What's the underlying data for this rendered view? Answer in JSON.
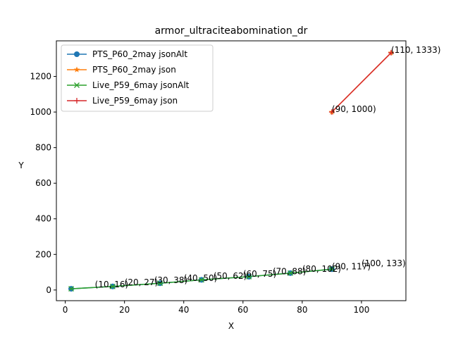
{
  "chart_data": {
    "type": "line",
    "title": "armor_ultraciteabomination_dr",
    "xlabel": "X",
    "ylabel": "Y",
    "xlim": [
      -3,
      115
    ],
    "ylim": [
      -60,
      1400
    ],
    "xticks": [
      0,
      20,
      40,
      60,
      80,
      100
    ],
    "yticks": [
      0,
      200,
      400,
      600,
      800,
      1000,
      1200
    ],
    "legend_position": "upper-left",
    "grid": false,
    "series": [
      {
        "name": "PTS_P60_2may jsonAlt",
        "color": "#1f77b4",
        "marker": "circle",
        "points": [
          [
            2,
            7
          ],
          [
            16,
            20
          ],
          [
            32,
            38
          ],
          [
            46,
            57
          ],
          [
            62,
            75
          ],
          [
            76,
            95
          ],
          [
            90,
            117
          ]
        ]
      },
      {
        "name": "PTS_P60_2may json",
        "color": "#ff7f0e",
        "marker": "star",
        "points": [
          [
            90,
            1000
          ],
          [
            110,
            1333
          ]
        ]
      },
      {
        "name": "Live_P59_6may jsonAlt",
        "color": "#2ca02c",
        "marker": "x",
        "points": [
          [
            2,
            7
          ],
          [
            16,
            20
          ],
          [
            32,
            38
          ],
          [
            46,
            57
          ],
          [
            62,
            75
          ],
          [
            76,
            95
          ],
          [
            90,
            117
          ]
        ]
      },
      {
        "name": "Live_P59_6may json",
        "color": "#d62728",
        "marker": "plus",
        "points": [
          [
            90,
            1000
          ],
          [
            110,
            1333
          ]
        ]
      }
    ],
    "annotations": [
      {
        "text": "(10, 16)",
        "x": 10,
        "y": 16
      },
      {
        "text": "(20, 27)",
        "x": 20,
        "y": 27
      },
      {
        "text": "(30, 38)",
        "x": 30,
        "y": 38
      },
      {
        "text": "(40, 50)",
        "x": 40,
        "y": 50
      },
      {
        "text": "(50, 62)",
        "x": 50,
        "y": 62
      },
      {
        "text": "(60, 75)",
        "x": 60,
        "y": 75
      },
      {
        "text": "(70, 88)",
        "x": 70,
        "y": 88
      },
      {
        "text": "(80, 102)",
        "x": 80,
        "y": 102
      },
      {
        "text": "(90, 117)",
        "x": 90,
        "y": 117
      },
      {
        "text": "(100, 133)",
        "x": 100,
        "y": 133
      },
      {
        "text": "(90, 1000)",
        "x": 90,
        "y": 1000
      },
      {
        "text": "(110, 1333)",
        "x": 110,
        "y": 1333
      }
    ]
  }
}
